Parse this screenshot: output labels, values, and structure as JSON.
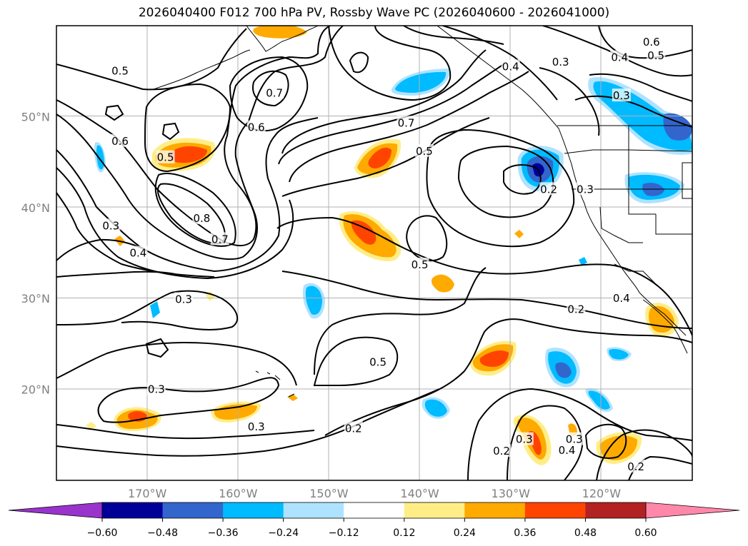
{
  "title": "2026040400 F012 700 hPa PV, Rossby Wave PC (2026040600 - 2026041000)",
  "map": {
    "lon_range": [
      -180,
      -110
    ],
    "lat_range": [
      10,
      60
    ],
    "lat_ticks": [
      {
        "value": 50,
        "label": "50°N"
      },
      {
        "value": 40,
        "label": "40°N"
      },
      {
        "value": 30,
        "label": "30°N"
      },
      {
        "value": 20,
        "label": "20°N"
      }
    ],
    "lon_ticks": [
      {
        "value": -170,
        "label": "170°W"
      },
      {
        "value": -160,
        "label": "160°W"
      },
      {
        "value": -150,
        "label": "150°W"
      },
      {
        "value": -140,
        "label": "140°W"
      },
      {
        "value": -130,
        "label": "130°W"
      },
      {
        "value": -120,
        "label": "120°W"
      }
    ],
    "gridlines": true,
    "contour_labels": [
      {
        "text": "0.5",
        "lon": -173.0,
        "lat": 55.0
      },
      {
        "text": "0.6",
        "lon": -173.0,
        "lat": 47.3
      },
      {
        "text": "0.3",
        "lon": -174.0,
        "lat": 38.0
      },
      {
        "text": "0.4",
        "lon": -171.0,
        "lat": 35.0
      },
      {
        "text": "0.5",
        "lon": -168.0,
        "lat": 45.5
      },
      {
        "text": "0.8",
        "lon": -164.0,
        "lat": 38.8
      },
      {
        "text": "0.7",
        "lon": -162.0,
        "lat": 36.5
      },
      {
        "text": "0.7",
        "lon": -156.0,
        "lat": 52.6
      },
      {
        "text": "0.6",
        "lon": -158.0,
        "lat": 48.8
      },
      {
        "text": "0.7",
        "lon": -141.5,
        "lat": 49.3
      },
      {
        "text": "0.5",
        "lon": -139.5,
        "lat": 46.2
      },
      {
        "text": "0.4",
        "lon": -130.0,
        "lat": 55.5
      },
      {
        "text": "0.3",
        "lon": -124.5,
        "lat": 56.0
      },
      {
        "text": "0.4",
        "lon": -118.0,
        "lat": 56.5
      },
      {
        "text": "0.6",
        "lon": -114.5,
        "lat": 58.2
      },
      {
        "text": "0.5",
        "lon": -114.0,
        "lat": 56.7
      },
      {
        "text": "0.3",
        "lon": -117.8,
        "lat": 52.3
      },
      {
        "text": "0.2",
        "lon": -125.8,
        "lat": 42.0
      },
      {
        "text": "0.3",
        "lon": -121.8,
        "lat": 42.0
      },
      {
        "text": "0.3",
        "lon": -166.0,
        "lat": 29.9
      },
      {
        "text": "0.5",
        "lon": -140.0,
        "lat": 33.7
      },
      {
        "text": "0.4",
        "lon": -117.8,
        "lat": 30.0
      },
      {
        "text": "0.2",
        "lon": -122.8,
        "lat": 28.8
      },
      {
        "text": "0.5",
        "lon": -144.6,
        "lat": 23.0
      },
      {
        "text": "0.3",
        "lon": -169.0,
        "lat": 20.0
      },
      {
        "text": "0.3",
        "lon": -158.0,
        "lat": 15.9
      },
      {
        "text": "0.2",
        "lon": -147.3,
        "lat": 15.7
      },
      {
        "text": "0.3",
        "lon": -128.5,
        "lat": 14.5
      },
      {
        "text": "0.3",
        "lon": -123.0,
        "lat": 14.5
      },
      {
        "text": "0.4",
        "lon": -123.8,
        "lat": 13.3
      },
      {
        "text": "0.2",
        "lon": -131.0,
        "lat": 13.2
      },
      {
        "text": "0.2",
        "lon": -116.2,
        "lat": 11.5
      }
    ]
  },
  "colorbar": {
    "levels": [
      -0.72,
      -0.6,
      -0.48,
      -0.36,
      -0.24,
      -0.12,
      0.12,
      0.24,
      0.36,
      0.48,
      0.6,
      0.72
    ],
    "colors": [
      "#9933cc",
      "#000099",
      "#3366cc",
      "#00bbff",
      "#aee3ff",
      "#ffffff",
      "#ffee88",
      "#ffaa00",
      "#ff4400",
      "#b22222",
      "#ff88aa"
    ],
    "extend": "both",
    "tick_labels": [
      "−0.60",
      "−0.48",
      "−0.36",
      "−0.24",
      "−0.12",
      "0.12",
      "0.24",
      "0.36",
      "0.48",
      "0.60"
    ]
  }
}
